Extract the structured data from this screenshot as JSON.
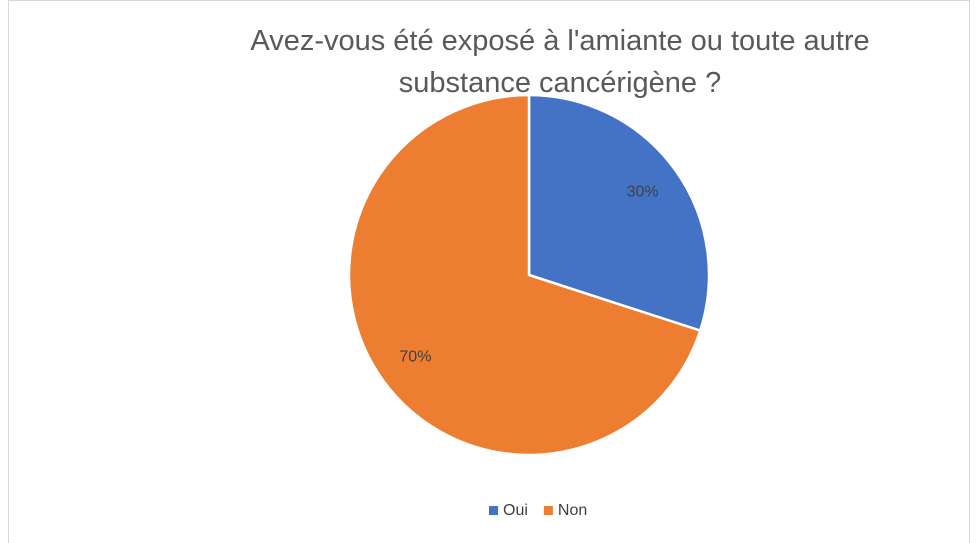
{
  "chart_data": {
    "type": "pie",
    "title": "Avez-vous été exposé à l'amiante ou toute autre substance cancérigène ?",
    "categories": [
      "Oui",
      "Non"
    ],
    "values": [
      30,
      70
    ],
    "value_labels": [
      "30%",
      "70%"
    ],
    "colors": [
      "#4472c4",
      "#ed7d31"
    ],
    "legend": "bottom"
  }
}
